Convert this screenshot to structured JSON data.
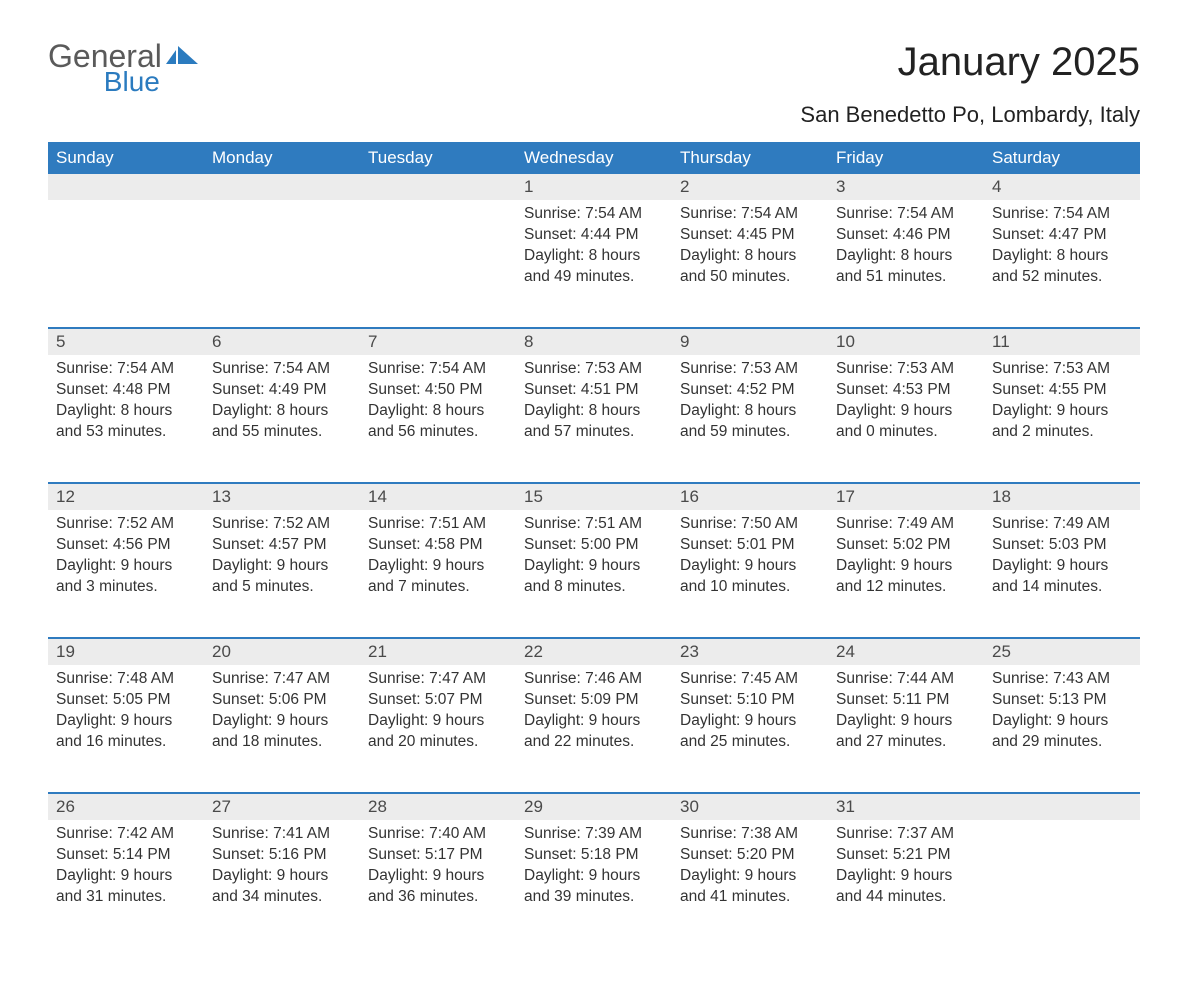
{
  "logo": {
    "general": "General",
    "blue": "Blue"
  },
  "colors": {
    "header_bg": "#2f7bbf",
    "header_text": "#ffffff",
    "daynum_bg": "#ececec",
    "daynum_border": "#2f7bbf",
    "body_text": "#333333",
    "logo_gray": "#5a5a5a",
    "logo_blue": "#2b7bbf",
    "page_bg": "#ffffff"
  },
  "title": "January 2025",
  "subtitle": "San Benedetto Po, Lombardy, Italy",
  "weekdays": [
    "Sunday",
    "Monday",
    "Tuesday",
    "Wednesday",
    "Thursday",
    "Friday",
    "Saturday"
  ],
  "weeks": [
    [
      null,
      null,
      null,
      {
        "n": "1",
        "sr": "Sunrise: 7:54 AM",
        "ss": "Sunset: 4:44 PM",
        "d1": "Daylight: 8 hours",
        "d2": "and 49 minutes."
      },
      {
        "n": "2",
        "sr": "Sunrise: 7:54 AM",
        "ss": "Sunset: 4:45 PM",
        "d1": "Daylight: 8 hours",
        "d2": "and 50 minutes."
      },
      {
        "n": "3",
        "sr": "Sunrise: 7:54 AM",
        "ss": "Sunset: 4:46 PM",
        "d1": "Daylight: 8 hours",
        "d2": "and 51 minutes."
      },
      {
        "n": "4",
        "sr": "Sunrise: 7:54 AM",
        "ss": "Sunset: 4:47 PM",
        "d1": "Daylight: 8 hours",
        "d2": "and 52 minutes."
      }
    ],
    [
      {
        "n": "5",
        "sr": "Sunrise: 7:54 AM",
        "ss": "Sunset: 4:48 PM",
        "d1": "Daylight: 8 hours",
        "d2": "and 53 minutes."
      },
      {
        "n": "6",
        "sr": "Sunrise: 7:54 AM",
        "ss": "Sunset: 4:49 PM",
        "d1": "Daylight: 8 hours",
        "d2": "and 55 minutes."
      },
      {
        "n": "7",
        "sr": "Sunrise: 7:54 AM",
        "ss": "Sunset: 4:50 PM",
        "d1": "Daylight: 8 hours",
        "d2": "and 56 minutes."
      },
      {
        "n": "8",
        "sr": "Sunrise: 7:53 AM",
        "ss": "Sunset: 4:51 PM",
        "d1": "Daylight: 8 hours",
        "d2": "and 57 minutes."
      },
      {
        "n": "9",
        "sr": "Sunrise: 7:53 AM",
        "ss": "Sunset: 4:52 PM",
        "d1": "Daylight: 8 hours",
        "d2": "and 59 minutes."
      },
      {
        "n": "10",
        "sr": "Sunrise: 7:53 AM",
        "ss": "Sunset: 4:53 PM",
        "d1": "Daylight: 9 hours",
        "d2": "and 0 minutes."
      },
      {
        "n": "11",
        "sr": "Sunrise: 7:53 AM",
        "ss": "Sunset: 4:55 PM",
        "d1": "Daylight: 9 hours",
        "d2": "and 2 minutes."
      }
    ],
    [
      {
        "n": "12",
        "sr": "Sunrise: 7:52 AM",
        "ss": "Sunset: 4:56 PM",
        "d1": "Daylight: 9 hours",
        "d2": "and 3 minutes."
      },
      {
        "n": "13",
        "sr": "Sunrise: 7:52 AM",
        "ss": "Sunset: 4:57 PM",
        "d1": "Daylight: 9 hours",
        "d2": "and 5 minutes."
      },
      {
        "n": "14",
        "sr": "Sunrise: 7:51 AM",
        "ss": "Sunset: 4:58 PM",
        "d1": "Daylight: 9 hours",
        "d2": "and 7 minutes."
      },
      {
        "n": "15",
        "sr": "Sunrise: 7:51 AM",
        "ss": "Sunset: 5:00 PM",
        "d1": "Daylight: 9 hours",
        "d2": "and 8 minutes."
      },
      {
        "n": "16",
        "sr": "Sunrise: 7:50 AM",
        "ss": "Sunset: 5:01 PM",
        "d1": "Daylight: 9 hours",
        "d2": "and 10 minutes."
      },
      {
        "n": "17",
        "sr": "Sunrise: 7:49 AM",
        "ss": "Sunset: 5:02 PM",
        "d1": "Daylight: 9 hours",
        "d2": "and 12 minutes."
      },
      {
        "n": "18",
        "sr": "Sunrise: 7:49 AM",
        "ss": "Sunset: 5:03 PM",
        "d1": "Daylight: 9 hours",
        "d2": "and 14 minutes."
      }
    ],
    [
      {
        "n": "19",
        "sr": "Sunrise: 7:48 AM",
        "ss": "Sunset: 5:05 PM",
        "d1": "Daylight: 9 hours",
        "d2": "and 16 minutes."
      },
      {
        "n": "20",
        "sr": "Sunrise: 7:47 AM",
        "ss": "Sunset: 5:06 PM",
        "d1": "Daylight: 9 hours",
        "d2": "and 18 minutes."
      },
      {
        "n": "21",
        "sr": "Sunrise: 7:47 AM",
        "ss": "Sunset: 5:07 PM",
        "d1": "Daylight: 9 hours",
        "d2": "and 20 minutes."
      },
      {
        "n": "22",
        "sr": "Sunrise: 7:46 AM",
        "ss": "Sunset: 5:09 PM",
        "d1": "Daylight: 9 hours",
        "d2": "and 22 minutes."
      },
      {
        "n": "23",
        "sr": "Sunrise: 7:45 AM",
        "ss": "Sunset: 5:10 PM",
        "d1": "Daylight: 9 hours",
        "d2": "and 25 minutes."
      },
      {
        "n": "24",
        "sr": "Sunrise: 7:44 AM",
        "ss": "Sunset: 5:11 PM",
        "d1": "Daylight: 9 hours",
        "d2": "and 27 minutes."
      },
      {
        "n": "25",
        "sr": "Sunrise: 7:43 AM",
        "ss": "Sunset: 5:13 PM",
        "d1": "Daylight: 9 hours",
        "d2": "and 29 minutes."
      }
    ],
    [
      {
        "n": "26",
        "sr": "Sunrise: 7:42 AM",
        "ss": "Sunset: 5:14 PM",
        "d1": "Daylight: 9 hours",
        "d2": "and 31 minutes."
      },
      {
        "n": "27",
        "sr": "Sunrise: 7:41 AM",
        "ss": "Sunset: 5:16 PM",
        "d1": "Daylight: 9 hours",
        "d2": "and 34 minutes."
      },
      {
        "n": "28",
        "sr": "Sunrise: 7:40 AM",
        "ss": "Sunset: 5:17 PM",
        "d1": "Daylight: 9 hours",
        "d2": "and 36 minutes."
      },
      {
        "n": "29",
        "sr": "Sunrise: 7:39 AM",
        "ss": "Sunset: 5:18 PM",
        "d1": "Daylight: 9 hours",
        "d2": "and 39 minutes."
      },
      {
        "n": "30",
        "sr": "Sunrise: 7:38 AM",
        "ss": "Sunset: 5:20 PM",
        "d1": "Daylight: 9 hours",
        "d2": "and 41 minutes."
      },
      {
        "n": "31",
        "sr": "Sunrise: 7:37 AM",
        "ss": "Sunset: 5:21 PM",
        "d1": "Daylight: 9 hours",
        "d2": "and 44 minutes."
      },
      null
    ]
  ]
}
